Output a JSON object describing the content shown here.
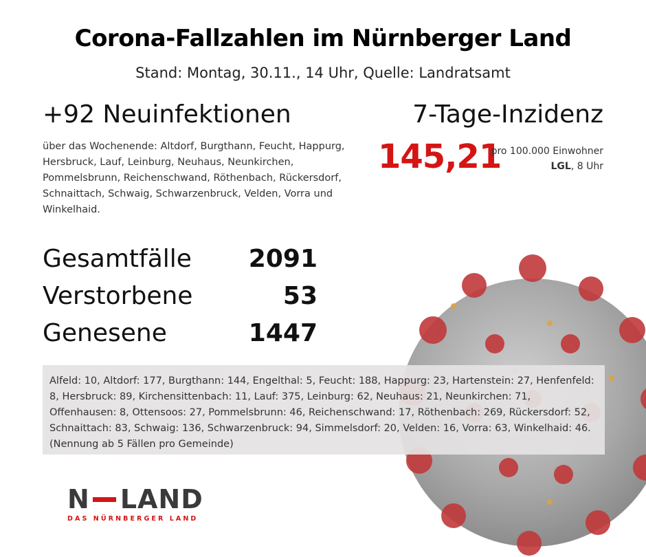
{
  "title": "Corona-Fallzahlen im Nürnberger Land",
  "subtitle": "Stand: Montag, 30.11., 14 Uhr, Quelle: Landratsamt",
  "new_infections": {
    "headline": "+92 Neuinfektionen",
    "text": "über das Wochenende: Altdorf, Burgthann, Feucht, Happurg, Hersbruck, Lauf, Leinburg, Neuhaus, Neunkirchen, Pommelsbrunn, Reichenschwand, Röthenbach, Rückersdorf, Schnaittach, Schwaig, Schwarzenbruck, Velden, Vorra und Winkelhaid."
  },
  "incidence": {
    "headline": "7-Tage-Inzidenz",
    "value": "145,21",
    "per": "pro 100.000 Einwohner",
    "source_bold": "LGL",
    "source_rest": ", 8 Uhr"
  },
  "stats": [
    {
      "label": "Gesamtfälle",
      "value": "2091"
    },
    {
      "label": "Verstorbene",
      "value": "53"
    },
    {
      "label": "Genesene",
      "value": "1447"
    }
  ],
  "municipalities": {
    "text": "Alfeld: 10, Altdorf: 177, Burgthann: 144, Engelthal: 5, Feucht: 188, Happurg: 23, Hartenstein: 27, Henfenfeld: 8, Hersbruck: 89, Kirchensittenbach: 11, Lauf: 375, Leinburg: 62, Neuhaus: 21, Neunkirchen: 71, Offenhausen: 8, Ottensoos: 27, Pommelsbrunn: 46, Reichenschwand: 17, Röthenbach: 269, Rückersdorf: 52, Schnaittach: 83, Schwaig: 136, Schwarzenbruck: 94, Simmelsdorf: 20, Velden: 16, Vorra: 63, Winkelhaid: 46.",
    "note": "(Nennung ab 5 Fällen pro Gemeinde)"
  },
  "logo": {
    "left": "N",
    "right": "LAND",
    "tagline": "DAS NÜRNBERGER LAND",
    "accent": "#d51414"
  },
  "colors": {
    "accent": "#d51414",
    "text": "#111111",
    "box": "#e4e2e2"
  }
}
